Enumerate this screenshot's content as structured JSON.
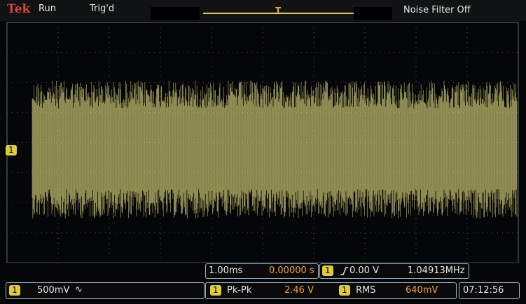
{
  "header": {
    "brand": "Tek",
    "status": "Run",
    "trigger_state": "Trig'd",
    "trigger_marker": "T",
    "filter": "Noise Filter Off"
  },
  "channel_marker": "1",
  "timebase": {
    "scale": "1.00ms",
    "position": "0.00000 s"
  },
  "trigger": {
    "channel": "1",
    "level": "0.00 V",
    "frequency": "1.04913MHz"
  },
  "vertical": {
    "channel": "1",
    "scale": "500mV",
    "coupling": "∿"
  },
  "measurements": [
    {
      "channel": "1",
      "name": "Pk-Pk",
      "value": "2.46 V"
    },
    {
      "channel": "1",
      "name": "RMS",
      "value": "640mV"
    }
  ],
  "clock": "07:12:56"
}
